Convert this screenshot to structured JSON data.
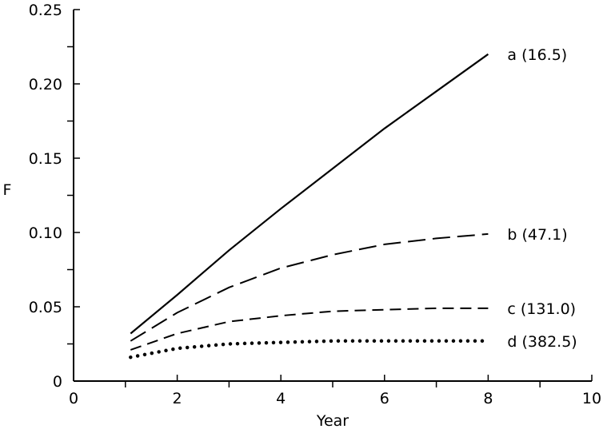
{
  "chart_data": {
    "type": "line",
    "title": "",
    "xlabel": "Year",
    "ylabel": "F",
    "xlim": [
      0,
      10
    ],
    "ylim": [
      0,
      0.25
    ],
    "x_ticks": [
      "0",
      "2",
      "4",
      "6",
      "8",
      "10"
    ],
    "y_ticks": [
      "0",
      "0.05",
      "0.10",
      "0.15",
      "0.20",
      "0.25"
    ],
    "grid": false,
    "legend": "none",
    "series": [
      {
        "name": "a (16.5)",
        "line_style": "solid",
        "x": [
          1.1,
          2,
          3,
          4,
          5,
          6,
          7,
          8
        ],
        "y": [
          0.032,
          0.058,
          0.088,
          0.116,
          0.143,
          0.17,
          0.195,
          0.22
        ]
      },
      {
        "name": "b (47.1)",
        "line_style": "long-dash",
        "x": [
          1.1,
          2,
          3,
          4,
          5,
          6,
          7,
          8
        ],
        "y": [
          0.027,
          0.046,
          0.063,
          0.076,
          0.085,
          0.092,
          0.096,
          0.099
        ]
      },
      {
        "name": "c (131.0)",
        "line_style": "dash",
        "x": [
          1.1,
          2,
          3,
          4,
          5,
          6,
          7,
          8
        ],
        "y": [
          0.021,
          0.032,
          0.04,
          0.044,
          0.047,
          0.048,
          0.049,
          0.049
        ]
      },
      {
        "name": "d (382.5)",
        "line_style": "dotted",
        "x": [
          1.1,
          2,
          3,
          4,
          5,
          6,
          7,
          8
        ],
        "y": [
          0.016,
          0.022,
          0.025,
          0.026,
          0.027,
          0.027,
          0.027,
          0.027
        ]
      }
    ]
  }
}
